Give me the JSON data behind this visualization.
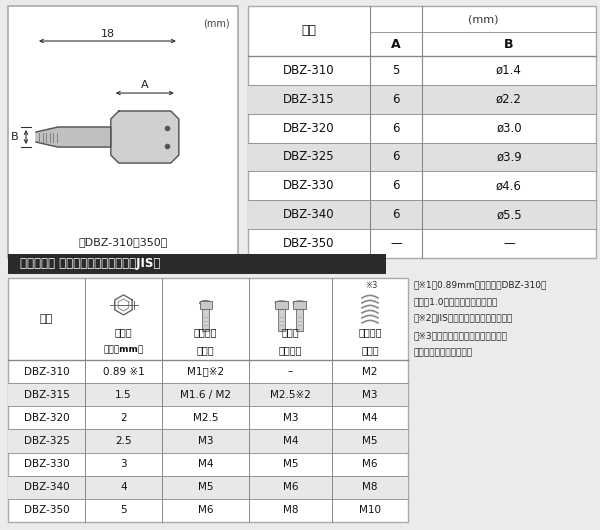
{
  "bg_color": "#ebebeb",
  "table1_mm_label": "(mm)",
  "table1_header_part": "品番",
  "table1_header_A": "A",
  "table1_header_B": "B",
  "table1_rows": [
    [
      "DBZ-310",
      "5",
      "ø1.4"
    ],
    [
      "DBZ-315",
      "6",
      "ø2.2"
    ],
    [
      "DBZ-320",
      "6",
      "ø3.0"
    ],
    [
      "DBZ-325",
      "6",
      "ø3.9"
    ],
    [
      "DBZ-330",
      "6",
      "ø4.6"
    ],
    [
      "DBZ-340",
      "6",
      "ø5.5"
    ],
    [
      "DBZ-350",
      "—",
      "—"
    ]
  ],
  "table1_shaded_rows": [
    1,
    3,
    5
  ],
  "diagram_label": "【DBZ-310～350】",
  "diagram_mm": "(mm)",
  "dim_18": "18",
  "dim_A": "A",
  "dim_B": "B",
  "section_title": "ネジモグラ 極短・ミドル　対応表（JIS）",
  "table2_header_col0": "品番",
  "table2_header_col1a": "六角穴",
  "table2_header_col1b": "対辺（mm）",
  "table2_header_col2a": "キャップ",
  "table2_header_col2b": "ボルト",
  "table2_header_col3a": "ボタン",
  "table2_header_col3b": "皿ボルト",
  "table2_header_col4a": "ホーロー",
  "table2_header_col4b": "セット",
  "table2_note3": "※3",
  "table2_rows": [
    [
      "DBZ-310",
      "0.89 ※1",
      "M1　※2",
      "–",
      "M2"
    ],
    [
      "DBZ-315",
      "1.5",
      "M1.6 / M2",
      "M2.5※2",
      "M3"
    ],
    [
      "DBZ-320",
      "2",
      "M2.5",
      "M3",
      "M4"
    ],
    [
      "DBZ-325",
      "2.5",
      "M3",
      "M4",
      "M5"
    ],
    [
      "DBZ-330",
      "3",
      "M4",
      "M5",
      "M6"
    ],
    [
      "DBZ-340",
      "4",
      "M5",
      "M6",
      "M8"
    ],
    [
      "DBZ-350",
      "5",
      "M6",
      "M8",
      "M10"
    ]
  ],
  "table2_shaded_rows": [
    1,
    3,
    5
  ],
  "notes": [
    "（※1）0.89mm用ビット（DBZ-310）",
    "には「1.0」と印字しています。",
    "（※2）JISに準拠しないサイズです。",
    "（※3）固着したホーローセットには",
    "使用しないでください。"
  ]
}
